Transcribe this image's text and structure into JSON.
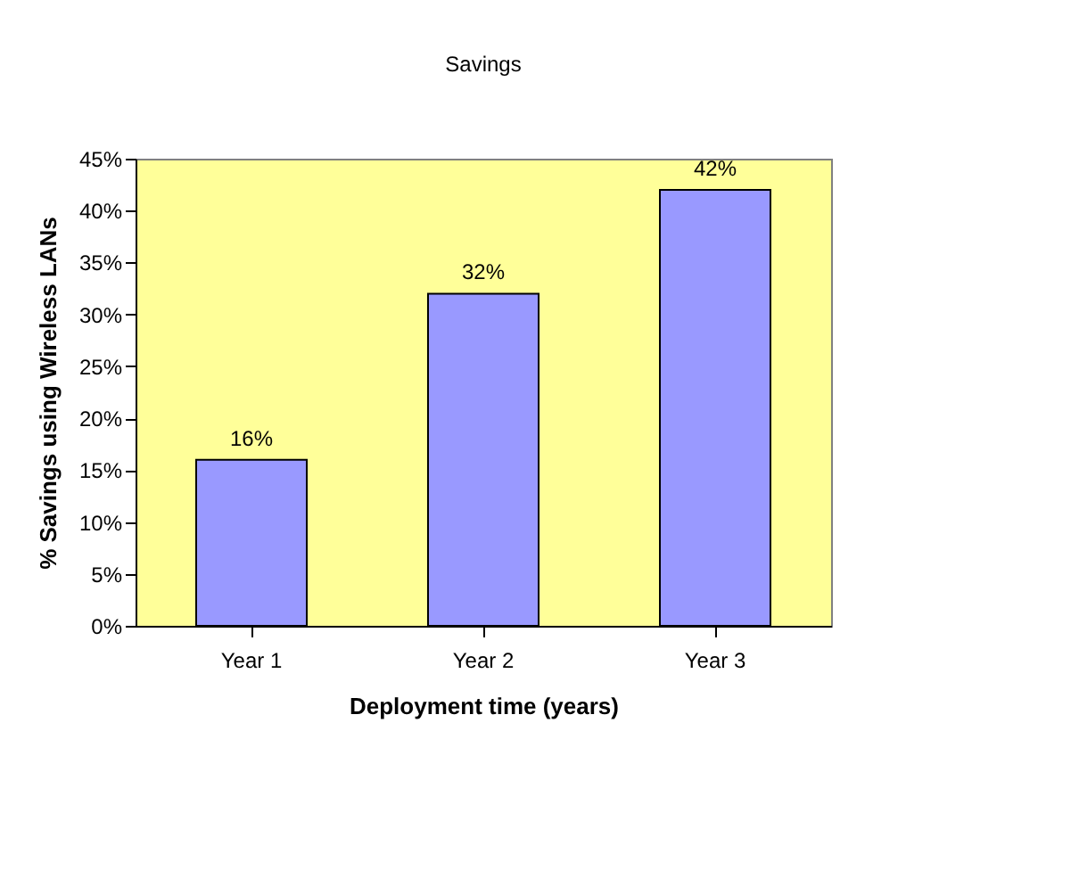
{
  "chart_data": {
    "type": "bar",
    "title": "Savings",
    "xlabel": "Deployment time (years)",
    "ylabel": "% Savings using Wireless LANs",
    "categories": [
      "Year 1",
      "Year 2",
      "Year 3"
    ],
    "values": [
      16,
      32,
      42
    ],
    "color": "#9999ff",
    "value_labels": [
      "16%",
      "32%",
      "42%"
    ],
    "ylim": [
      0,
      45
    ],
    "yticks": [
      {
        "value": 0,
        "label": "0%"
      },
      {
        "value": 5,
        "label": "5%"
      },
      {
        "value": 10,
        "label": "10%"
      },
      {
        "value": 15,
        "label": "15%"
      },
      {
        "value": 20,
        "label": "20%"
      },
      {
        "value": 25,
        "label": "25%"
      },
      {
        "value": 30,
        "label": "30%"
      },
      {
        "value": 35,
        "label": "35%"
      },
      {
        "value": 40,
        "label": "40%"
      },
      {
        "value": 45,
        "label": "45%"
      }
    ],
    "grid": false
  }
}
